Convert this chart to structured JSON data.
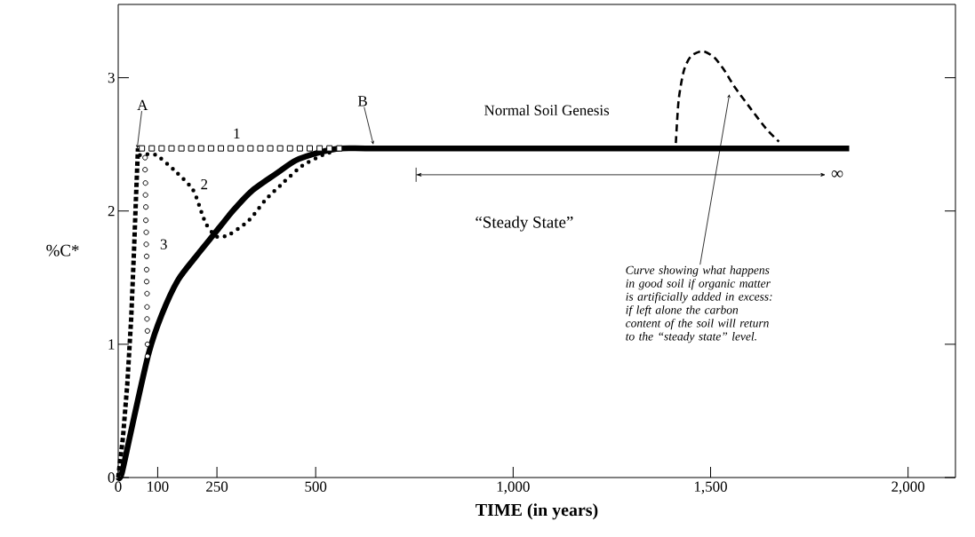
{
  "chart_data": {
    "type": "line",
    "xlabel": "TIME (in years)",
    "ylabel": "%C*",
    "xlim": [
      0,
      2120
    ],
    "ylim": [
      0,
      3.55
    ],
    "xticks": [
      0,
      100,
      250,
      500,
      {
        "value": 1000,
        "label": "1,000"
      },
      {
        "value": 1500,
        "label": "1,500"
      },
      {
        "value": 2000,
        "label": "2,000"
      }
    ],
    "yticks": [
      0,
      1,
      2,
      3
    ],
    "series": [
      {
        "line_style": "dashed",
        "color": "#000000",
        "x": [
          0,
          12,
          23,
          33,
          40,
          45,
          50
        ],
        "values": [
          0,
          0.3,
          0.7,
          1.2,
          1.7,
          2.1,
          2.47
        ]
      },
      {
        "type": "scatter",
        "marker": "square",
        "color": "#000000",
        "x": [
          60,
          85,
          110,
          135,
          160,
          185,
          210,
          235,
          260,
          285,
          310,
          335,
          360,
          385,
          410,
          435,
          460,
          485,
          510,
          535,
          560
        ],
        "values": [
          2.47,
          2.47,
          2.47,
          2.47,
          2.47,
          2.47,
          2.47,
          2.47,
          2.47,
          2.47,
          2.47,
          2.47,
          2.47,
          2.47,
          2.47,
          2.47,
          2.47,
          2.47,
          2.47,
          2.47,
          2.47
        ]
      },
      {
        "line_style": "dotted",
        "color": "#000000",
        "x": [
          55,
          95,
          144,
          189,
          211,
          223,
          248,
          279,
          331,
          372,
          417,
          466,
          518,
          550
        ],
        "values": [
          2.42,
          2.42,
          2.3,
          2.16,
          1.99,
          1.9,
          1.81,
          1.82,
          1.93,
          2.08,
          2.21,
          2.34,
          2.42,
          2.45
        ]
      },
      {
        "type": "scatter",
        "marker": "circle",
        "color": "#000000",
        "x": [
          68,
          68,
          69,
          69,
          70,
          70,
          71,
          71,
          72,
          72,
          72,
          73,
          73,
          73,
          74,
          74,
          74
        ],
        "values": [
          2.4,
          2.31,
          2.21,
          2.12,
          2.03,
          1.93,
          1.84,
          1.75,
          1.66,
          1.56,
          1.47,
          1.38,
          1.28,
          1.19,
          1.1,
          1.0,
          0.91
        ]
      },
      {
        "line_style": "solid",
        "color": "#000000",
        "x": [
          0,
          9,
          40,
          77,
          110,
          151,
          200,
          241,
          290,
          338,
          400,
          450,
          510,
          563,
          650,
          1000,
          1500,
          1851
        ],
        "values": [
          0,
          0.03,
          0.45,
          0.93,
          1.22,
          1.48,
          1.67,
          1.82,
          2.0,
          2.15,
          2.28,
          2.38,
          2.44,
          2.47,
          2.47,
          2.47,
          2.47,
          2.47
        ]
      },
      {
        "line_style": "dashed",
        "color": "#000000",
        "x": [
          1412,
          1419,
          1432,
          1450,
          1480,
          1510,
          1536,
          1561,
          1601,
          1640,
          1673
        ],
        "values": [
          2.51,
          2.83,
          3.05,
          3.16,
          3.2,
          3.15,
          3.05,
          2.93,
          2.77,
          2.62,
          2.52
        ]
      }
    ],
    "annotations": [
      {
        "text": "A",
        "x": 48,
        "y": 2.47
      },
      {
        "text": "B",
        "x": 646,
        "y": 2.5
      },
      {
        "text": "1",
        "x": 300,
        "y": 2.47
      },
      "2",
      {
        "text": "3",
        "x": 76,
        "y": 1.75
      },
      {
        "text": "Normal Soil Genesis",
        "x": 1085,
        "y": 2.47
      },
      "“Steady State”",
      "∞",
      "Curve showing what happens in good soil if organic matter is artificially added in excess: if left alone the carbon content of the soil will return to the “steady state” level."
    ]
  }
}
